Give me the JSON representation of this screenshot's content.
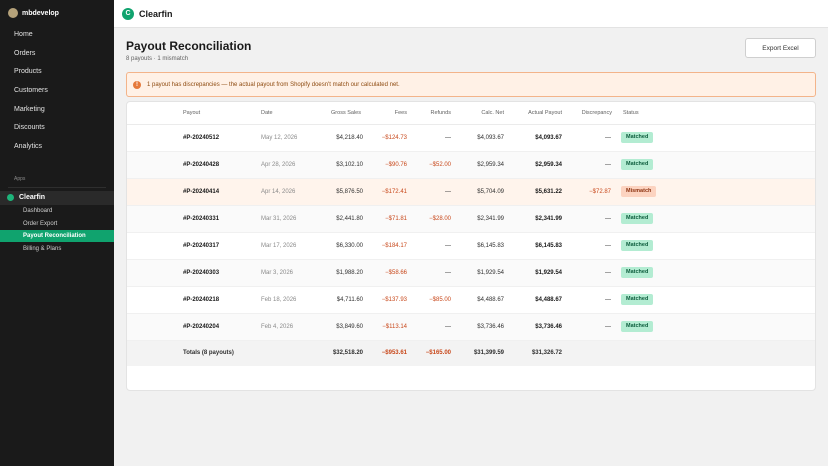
{
  "store": {
    "name": "mbdevelop"
  },
  "nav": [
    {
      "label": "Home"
    },
    {
      "label": "Orders"
    },
    {
      "label": "Products"
    },
    {
      "label": "Customers"
    },
    {
      "label": "Marketing"
    },
    {
      "label": "Discounts"
    },
    {
      "label": "Analytics"
    }
  ],
  "apps_label": "Apps",
  "app": {
    "name": "Clearfin",
    "sub_items": [
      {
        "label": "Dashboard",
        "active": false
      },
      {
        "label": "Order Export",
        "active": false
      },
      {
        "label": "Payout Reconciliation",
        "active": true
      },
      {
        "label": "Billing & Plans",
        "active": false
      }
    ]
  },
  "topbar": {
    "logo_letter": "C",
    "brand": "Clearfin"
  },
  "page": {
    "title": "Payout Reconciliation",
    "subtitle": "8 payouts · 1 mismatch",
    "export_label": "Export Excel"
  },
  "banner": {
    "icon": "warning-icon",
    "text": "1 payout has discrepancies — the actual payout from Shopify doesn't match our calculated net."
  },
  "table": {
    "columns": [
      "Payout",
      "Date",
      "Gross Sales",
      "Fees",
      "Refunds",
      "Calc. Net",
      "Actual Payout",
      "Discrepancy",
      "Status"
    ],
    "rows": [
      {
        "payout": "#P-20240512",
        "date": "May 12, 2026",
        "gross": "$4,218.40",
        "fees": "−$124.73",
        "refunds": "—",
        "calc_net": "$4,093.67",
        "actual": "$4,093.67",
        "discrepancy": "—",
        "status": "Matched"
      },
      {
        "payout": "#P-20240428",
        "date": "Apr 28, 2026",
        "gross": "$3,102.10",
        "fees": "−$90.76",
        "refunds": "−$52.00",
        "calc_net": "$2,959.34",
        "actual": "$2,959.34",
        "discrepancy": "—",
        "status": "Matched"
      },
      {
        "payout": "#P-20240414",
        "date": "Apr 14, 2026",
        "gross": "$5,876.50",
        "fees": "−$172.41",
        "refunds": "—",
        "calc_net": "$5,704.09",
        "actual": "$5,631.22",
        "discrepancy": "−$72.87",
        "status": "Mismatch"
      },
      {
        "payout": "#P-20240331",
        "date": "Mar 31, 2026",
        "gross": "$2,441.80",
        "fees": "−$71.81",
        "refunds": "−$28.00",
        "calc_net": "$2,341.99",
        "actual": "$2,341.99",
        "discrepancy": "—",
        "status": "Matched"
      },
      {
        "payout": "#P-20240317",
        "date": "Mar 17, 2026",
        "gross": "$6,330.00",
        "fees": "−$184.17",
        "refunds": "—",
        "calc_net": "$6,145.83",
        "actual": "$6,145.83",
        "discrepancy": "—",
        "status": "Matched"
      },
      {
        "payout": "#P-20240303",
        "date": "Mar 3, 2026",
        "gross": "$1,988.20",
        "fees": "−$58.66",
        "refunds": "—",
        "calc_net": "$1,929.54",
        "actual": "$1,929.54",
        "discrepancy": "—",
        "status": "Matched"
      },
      {
        "payout": "#P-20240218",
        "date": "Feb 18, 2026",
        "gross": "$4,711.60",
        "fees": "−$137.93",
        "refunds": "−$85.00",
        "calc_net": "$4,488.67",
        "actual": "$4,488.67",
        "discrepancy": "—",
        "status": "Matched"
      },
      {
        "payout": "#P-20240204",
        "date": "Feb 4, 2026",
        "gross": "$3,849.60",
        "fees": "−$113.14",
        "refunds": "—",
        "calc_net": "$3,736.46",
        "actual": "$3,736.46",
        "discrepancy": "—",
        "status": "Matched"
      }
    ],
    "totals": {
      "label": "Totals (8 payouts)",
      "gross": "$32,518.20",
      "fees": "−$953.61",
      "refunds": "−$165.00",
      "calc_net": "$31,399.59",
      "actual": "$31,326.72"
    }
  },
  "colors": {
    "accent": "#10a36e",
    "sidebar_bg": "#1a1a1a",
    "negative": "#c8481b",
    "matched_badge": "#b3ecd2",
    "mismatch_badge": "#fcd3c0",
    "banner_bg": "#fff1e6"
  }
}
